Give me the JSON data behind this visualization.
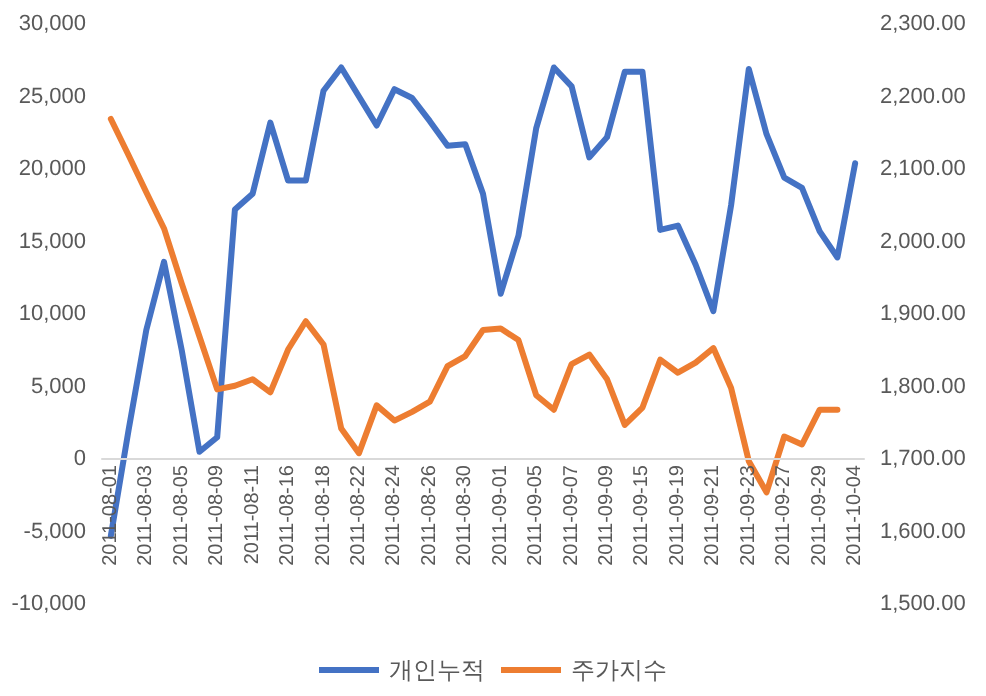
{
  "chart_data": {
    "type": "line",
    "categories": [
      "2011-08-01",
      null,
      "2011-08-03",
      null,
      "2011-08-05",
      null,
      "2011-08-09",
      null,
      "2011-08-11",
      null,
      "2011-08-16",
      null,
      "2011-08-18",
      null,
      "2011-08-22",
      null,
      "2011-08-24",
      null,
      "2011-08-26",
      null,
      "2011-08-30",
      null,
      "2011-09-01",
      null,
      "2011-09-05",
      null,
      "2011-09-07",
      null,
      "2011-09-09",
      null,
      "2011-09-15",
      null,
      "2011-09-19",
      null,
      "2011-09-21",
      null,
      "2011-09-23",
      null,
      "2011-09-27",
      null,
      "2011-09-29",
      null,
      "2011-10-04"
    ],
    "series": [
      {
        "name": "개인누적",
        "color": "#4472c4",
        "values": [
          -5300,
          2000,
          8900,
          13600,
          7500,
          500,
          1500,
          17200,
          18300,
          23200,
          19200,
          19200,
          25400,
          27000,
          25000,
          23000,
          25500,
          24900,
          23300,
          21600,
          21700,
          18300,
          11400,
          15400,
          22800,
          27000,
          25700,
          20800,
          22200,
          26700,
          26700,
          15800,
          16100,
          13400,
          10200,
          17500,
          26900,
          22400,
          19400,
          18700,
          15700,
          13900,
          20400
        ]
      },
      {
        "name": "주가지수",
        "color": "#ed7d31",
        "axis": "y2",
        "values": [
          2169,
          2119,
          2068,
          2018,
          1942,
          1869,
          1796,
          1801,
          1810,
          1792,
          1851,
          1890,
          1858,
          1742,
          1708,
          1774,
          1753,
          1765,
          1779,
          1828,
          1842,
          1878,
          1880,
          1864,
          1788,
          1768,
          1831,
          1844,
          1810,
          1747,
          1771,
          1837,
          1819,
          1833,
          1853,
          1798,
          1697,
          1654,
          1731,
          1720,
          1768,
          1768,
          null
        ]
      }
    ],
    "ylim": [
      -10000,
      30000
    ],
    "yticks": [
      {
        "value": -10000,
        "label": "-10,000"
      },
      {
        "value": -5000,
        "label": "-5,000"
      },
      {
        "value": 0,
        "label": "0"
      },
      {
        "value": 5000,
        "label": "5,000"
      },
      {
        "value": 10000,
        "label": "10,000"
      },
      {
        "value": 15000,
        "label": "15,000"
      },
      {
        "value": 20000,
        "label": "20,000"
      },
      {
        "value": 25000,
        "label": "25,000"
      },
      {
        "value": 30000,
        "label": "30,000"
      }
    ],
    "y2lim": [
      1500,
      2300
    ],
    "y2ticks": [
      {
        "value": 1500,
        "label": "1,500.00"
      },
      {
        "value": 1600,
        "label": "1,600.00"
      },
      {
        "value": 1700,
        "label": "1,700.00"
      },
      {
        "value": 1800,
        "label": "1,800.00"
      },
      {
        "value": 1900,
        "label": "1,900.00"
      },
      {
        "value": 2000,
        "label": "2,000.00"
      },
      {
        "value": 2100,
        "label": "2,100.00"
      },
      {
        "value": 2200,
        "label": "2,200.00"
      },
      {
        "value": 2300,
        "label": "2,300.00"
      }
    ],
    "legend": "bottom"
  }
}
